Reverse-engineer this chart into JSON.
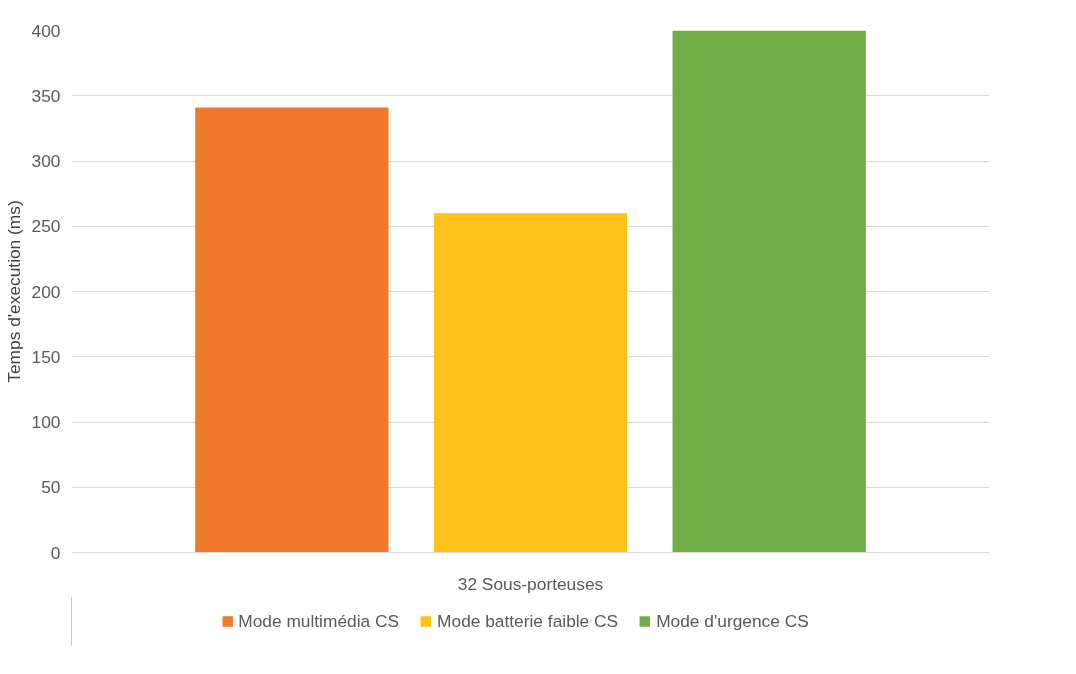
{
  "chart_data": {
    "type": "bar",
    "ylabel": "Temps d'execution (ms)",
    "categories": [
      "32 Sous-porteuses"
    ],
    "series": [
      {
        "name": "Mode multimédia CS",
        "color": "#ef7a2b",
        "values": [
          341
        ]
      },
      {
        "name": "Mode batterie faible CS",
        "color": "#fdc21a",
        "values": [
          260
        ]
      },
      {
        "name": "Mode d'urgence CS",
        "color": "#70ad47",
        "values": [
          400
        ]
      }
    ],
    "ylim": [
      0,
      400
    ],
    "yticks": [
      0,
      50,
      100,
      150,
      200,
      250,
      300,
      350,
      400
    ],
    "grid": "y",
    "legend": "bottom"
  }
}
